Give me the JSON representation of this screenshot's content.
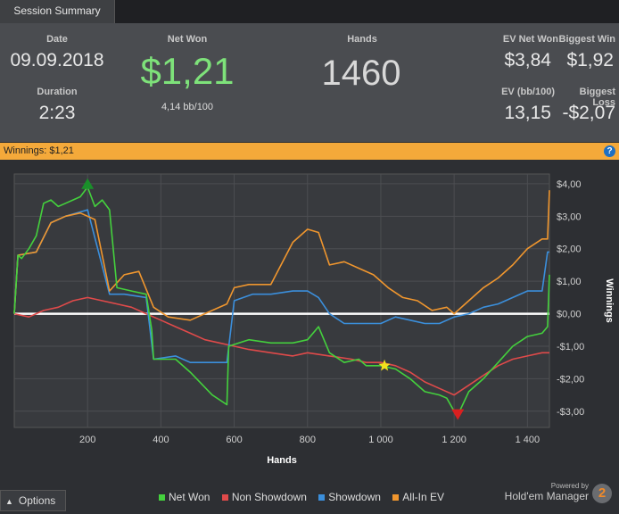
{
  "tab": {
    "label": "Session Summary"
  },
  "summary": {
    "date_label": "Date",
    "date_value": "09.09.2018",
    "duration_label": "Duration",
    "duration_value": "2:23",
    "net_won_label": "Net Won",
    "net_won_value": "$1,21",
    "net_won_sub": "4,14 bb/100",
    "hands_label": "Hands",
    "hands_value": "1460",
    "ev_net_won_label": "EV Net Won",
    "ev_net_won_value": "$3,84",
    "biggest_win_label": "Biggest Win",
    "biggest_win_value": "$1,92",
    "ev_bb_label": "EV (bb/100)",
    "ev_bb_value": "13,15",
    "biggest_loss_label": "Biggest Loss",
    "biggest_loss_value": "-$2,07"
  },
  "banner": {
    "text": "Winnings: $1,21",
    "help": "?"
  },
  "options": {
    "label": "Options"
  },
  "brand": {
    "powered": "Powered by",
    "name": "Hold'em Manager",
    "version": "2"
  },
  "colors": {
    "net_won": "#44d13d",
    "non_showdown": "#e04a4a",
    "showdown": "#3b8fdc",
    "all_in_ev": "#f0962e",
    "zero_line": "#ffffff"
  },
  "chart_data": {
    "type": "line",
    "xlabel": "Hands",
    "ylabel": "Winnings",
    "xlim": [
      0,
      1460
    ],
    "ylim": [
      -3.5,
      4.3
    ],
    "x_ticks": [
      200,
      400,
      600,
      800,
      1000,
      1200,
      1400
    ],
    "x_tick_labels": [
      "200",
      "400",
      "600",
      "800",
      "1 000",
      "1 200",
      "1 400"
    ],
    "y_ticks": [
      4,
      3,
      2,
      1,
      0,
      -1,
      -2,
      -3
    ],
    "y_tick_labels": [
      "$4,00",
      "$3,00",
      "$2,00",
      "$1,00",
      "$0,00",
      "-$1,00",
      "-$2,00",
      "-$3,00"
    ],
    "grid": true,
    "legend_position": "bottom",
    "series": [
      {
        "name": "Net Won",
        "x": [
          0,
          10,
          20,
          40,
          60,
          80,
          100,
          120,
          140,
          160,
          180,
          200,
          220,
          240,
          260,
          280,
          320,
          360,
          375,
          380,
          440,
          480,
          540,
          580,
          585,
          640,
          700,
          760,
          800,
          830,
          860,
          900,
          940,
          960,
          1000,
          1040,
          1080,
          1120,
          1160,
          1180,
          1200,
          1215,
          1240,
          1280,
          1320,
          1360,
          1400,
          1440,
          1455,
          1460
        ],
        "y": [
          0,
          1.8,
          1.7,
          2.0,
          2.4,
          3.4,
          3.5,
          3.3,
          3.4,
          3.5,
          3.6,
          3.9,
          3.3,
          3.5,
          3.2,
          0.8,
          0.7,
          0.6,
          -0.5,
          -1.4,
          -1.4,
          -1.8,
          -2.5,
          -2.8,
          -1.0,
          -0.8,
          -0.9,
          -0.9,
          -0.8,
          -0.4,
          -1.2,
          -1.5,
          -1.4,
          -1.6,
          -1.6,
          -1.7,
          -2.0,
          -2.4,
          -2.5,
          -2.6,
          -3.0,
          -3.0,
          -2.4,
          -2.0,
          -1.5,
          -1.0,
          -0.7,
          -0.6,
          -0.4,
          1.2
        ]
      },
      {
        "name": "Non Showdown",
        "x": [
          0,
          40,
          80,
          120,
          160,
          200,
          240,
          280,
          320,
          360,
          400,
          440,
          480,
          520,
          560,
          600,
          640,
          700,
          760,
          800,
          860,
          920,
          960,
          1000,
          1040,
          1080,
          1120,
          1160,
          1200,
          1240,
          1280,
          1320,
          1360,
          1400,
          1440,
          1460
        ],
        "y": [
          0,
          -0.1,
          0.1,
          0.2,
          0.4,
          0.5,
          0.4,
          0.3,
          0.2,
          0.0,
          -0.2,
          -0.4,
          -0.6,
          -0.8,
          -0.9,
          -1.0,
          -1.1,
          -1.2,
          -1.3,
          -1.2,
          -1.3,
          -1.4,
          -1.5,
          -1.5,
          -1.6,
          -1.8,
          -2.1,
          -2.3,
          -2.5,
          -2.2,
          -1.9,
          -1.6,
          -1.4,
          -1.3,
          -1.2,
          -1.2
        ]
      },
      {
        "name": "Showdown",
        "x": [
          0,
          10,
          60,
          100,
          140,
          200,
          260,
          300,
          360,
          380,
          440,
          480,
          540,
          580,
          600,
          650,
          700,
          760,
          800,
          830,
          860,
          900,
          960,
          1000,
          1040,
          1080,
          1120,
          1160,
          1200,
          1240,
          1280,
          1320,
          1360,
          1400,
          1440,
          1455,
          1460
        ],
        "y": [
          0,
          1.8,
          1.9,
          2.8,
          3.0,
          3.2,
          0.6,
          0.6,
          0.5,
          -1.4,
          -1.3,
          -1.5,
          -1.5,
          -1.5,
          0.4,
          0.6,
          0.6,
          0.7,
          0.7,
          0.5,
          0.0,
          -0.3,
          -0.3,
          -0.3,
          -0.1,
          -0.2,
          -0.3,
          -0.3,
          -0.1,
          0.0,
          0.2,
          0.3,
          0.5,
          0.7,
          0.7,
          1.9,
          1.9
        ]
      },
      {
        "name": "All-In EV",
        "x": [
          0,
          10,
          60,
          100,
          140,
          180,
          220,
          260,
          300,
          340,
          380,
          420,
          480,
          540,
          580,
          600,
          640,
          700,
          760,
          800,
          830,
          860,
          900,
          940,
          980,
          1020,
          1060,
          1100,
          1140,
          1180,
          1200,
          1240,
          1280,
          1320,
          1360,
          1400,
          1440,
          1455,
          1460
        ],
        "y": [
          0,
          1.8,
          1.9,
          2.8,
          3.0,
          3.1,
          2.9,
          0.7,
          1.2,
          1.3,
          0.2,
          -0.1,
          -0.2,
          0.1,
          0.3,
          0.8,
          0.9,
          0.9,
          2.2,
          2.6,
          2.5,
          1.5,
          1.6,
          1.4,
          1.2,
          0.8,
          0.5,
          0.4,
          0.1,
          0.2,
          0.0,
          0.4,
          0.8,
          1.1,
          1.5,
          2.0,
          2.3,
          2.3,
          3.8
        ]
      }
    ],
    "markers": [
      {
        "type": "max",
        "shape": "triangle-up",
        "color": "#1a8f2a",
        "x": 200,
        "y": 3.95
      },
      {
        "type": "star",
        "shape": "star",
        "color": "#f3e21d",
        "x": 1010,
        "y": -1.6
      },
      {
        "type": "min",
        "shape": "triangle-down",
        "color": "#d92020",
        "x": 1210,
        "y": -3.05
      }
    ]
  }
}
